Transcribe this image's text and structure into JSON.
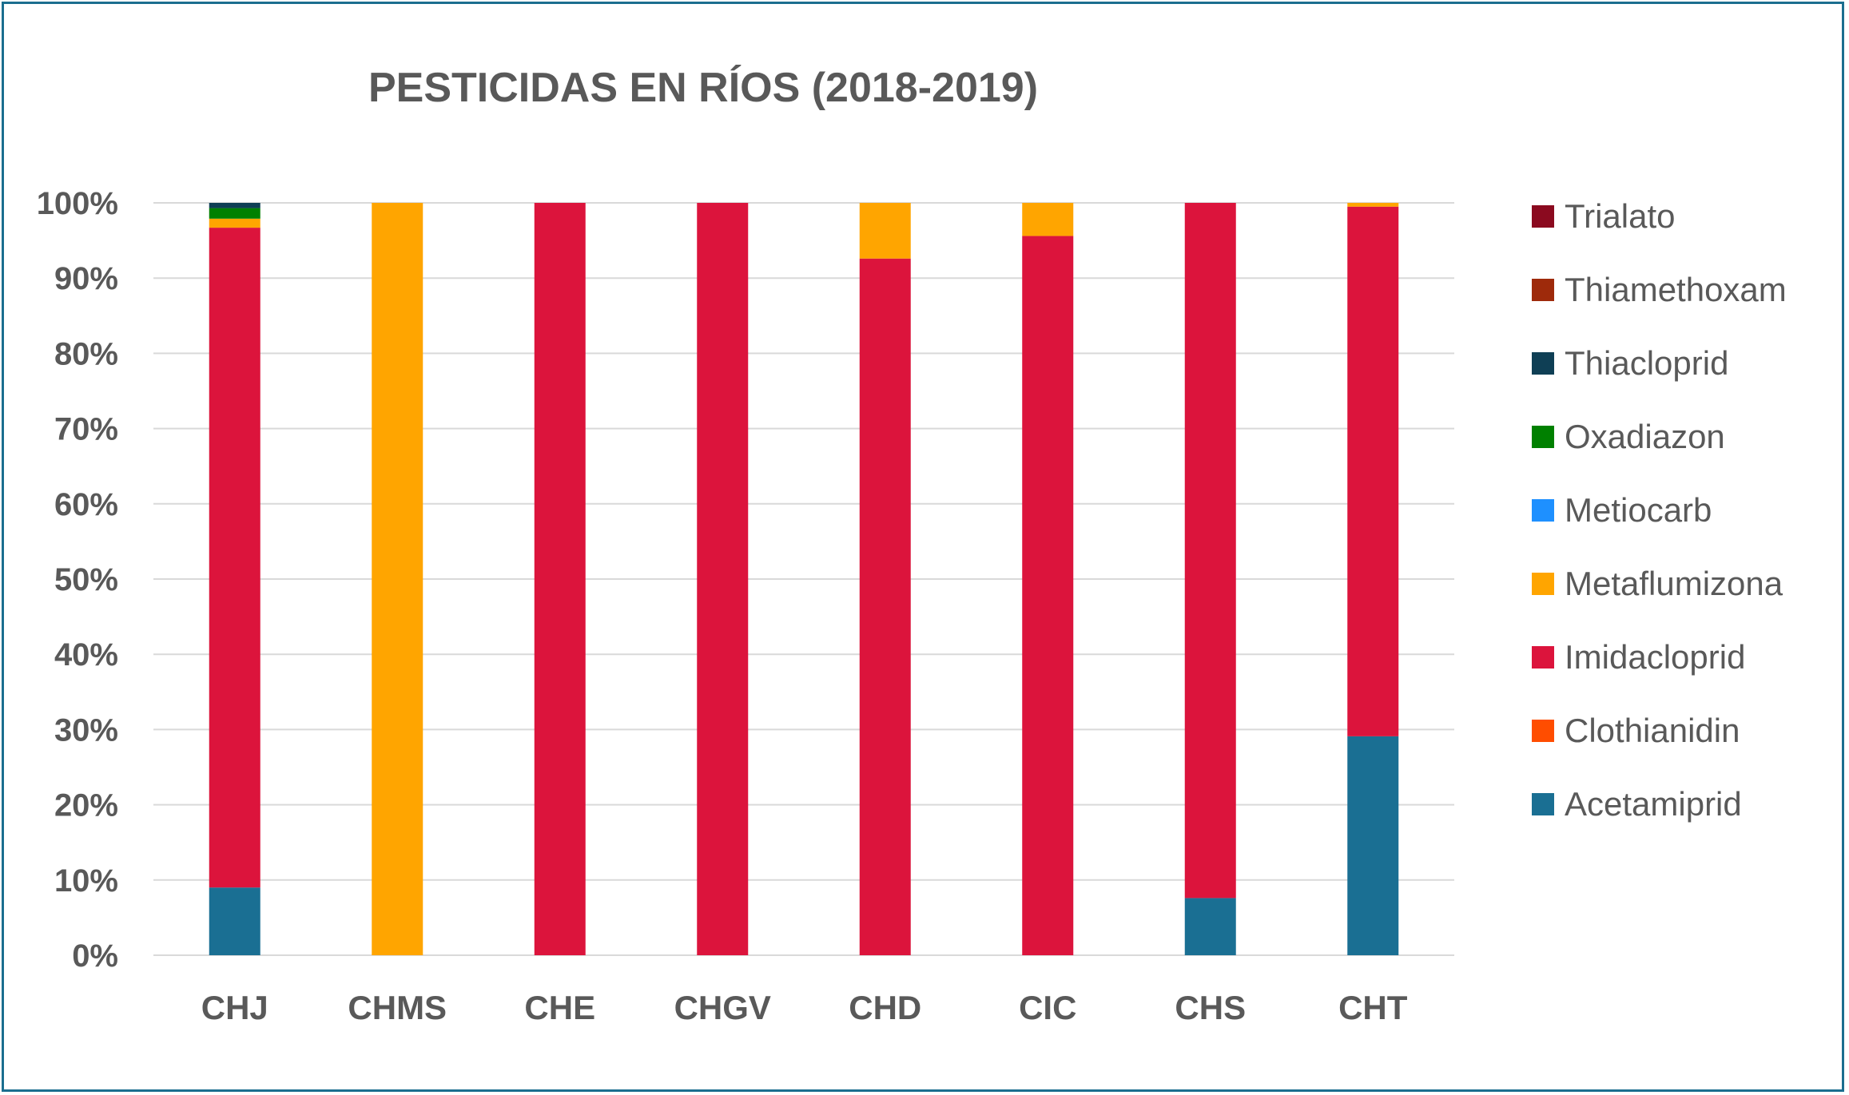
{
  "chart_data": {
    "type": "bar",
    "stacked": true,
    "title": "PESTICIDAS EN RÍOS (2018-2019)",
    "xlabel": "",
    "ylabel": "",
    "ylim": [
      0,
      100
    ],
    "yticks": [
      "0%",
      "10%",
      "20%",
      "30%",
      "40%",
      "50%",
      "60%",
      "70%",
      "80%",
      "90%",
      "100%"
    ],
    "grid": true,
    "legend_position": "right",
    "categories": [
      "CHJ",
      "CHMS",
      "CHE",
      "CHGV",
      "CHD",
      "CIC",
      "CHS",
      "CHT"
    ],
    "series": [
      {
        "name": "Acetamiprid",
        "color": "#1a6f93",
        "values": [
          9,
          0,
          0,
          0,
          0,
          0,
          7.6,
          29.1
        ]
      },
      {
        "name": "Clothianidin",
        "color": "#ff4d00",
        "values": [
          0,
          0,
          0,
          0,
          0,
          0,
          0,
          0
        ]
      },
      {
        "name": "Imidacloprid",
        "color": "#dc143c",
        "values": [
          87.7,
          0,
          100,
          100,
          92.6,
          95.6,
          92.4,
          70.4
        ]
      },
      {
        "name": "Metaflumizona",
        "color": "#ffa500",
        "values": [
          1.2,
          100,
          0,
          0,
          7.4,
          4.4,
          0,
          0.5
        ]
      },
      {
        "name": "Metiocarb",
        "color": "#1e90ff",
        "values": [
          0,
          0,
          0,
          0,
          0,
          0,
          0,
          0
        ]
      },
      {
        "name": "Oxadiazon",
        "color": "#008000",
        "values": [
          1.4,
          0,
          0,
          0,
          0,
          0,
          0,
          0
        ]
      },
      {
        "name": "Thiacloprid",
        "color": "#0f3f55",
        "values": [
          0.7,
          0,
          0,
          0,
          0,
          0,
          0,
          0
        ]
      },
      {
        "name": "Thiamethoxam",
        "color": "#9e2a0b",
        "values": [
          0,
          0,
          0,
          0,
          0,
          0,
          0,
          0
        ]
      },
      {
        "name": "Trialato",
        "color": "#8b0a1f",
        "values": [
          0,
          0,
          0,
          0,
          0,
          0,
          0,
          0
        ]
      }
    ]
  }
}
